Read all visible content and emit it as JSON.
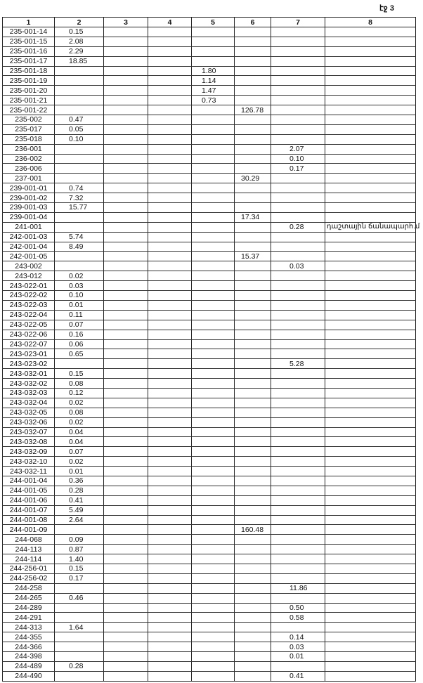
{
  "page_label": "էջ 3",
  "columns": [
    "1",
    "2",
    "3",
    "4",
    "5",
    "6",
    "7",
    "8"
  ],
  "rows": [
    [
      "235-001-14",
      "0.15",
      "",
      "",
      "",
      "",
      "",
      ""
    ],
    [
      "235-001-15",
      "2.08",
      "",
      "",
      "",
      "",
      "",
      ""
    ],
    [
      "235-001-16",
      "2.29",
      "",
      "",
      "",
      "",
      "",
      ""
    ],
    [
      "235-001-17",
      "18.85",
      "",
      "",
      "",
      "",
      "",
      ""
    ],
    [
      "235-001-18",
      "",
      "",
      "",
      "1.80",
      "",
      "",
      ""
    ],
    [
      "235-001-19",
      "",
      "",
      "",
      "1.14",
      "",
      "",
      ""
    ],
    [
      "235-001-20",
      "",
      "",
      "",
      "1.47",
      "",
      "",
      ""
    ],
    [
      "235-001-21",
      "",
      "",
      "",
      "0.73",
      "",
      "",
      ""
    ],
    [
      "235-001-22",
      "",
      "",
      "",
      "",
      "126.78",
      "",
      ""
    ],
    [
      "235-002",
      "0.47",
      "",
      "",
      "",
      "",
      "",
      ""
    ],
    [
      "235-017",
      "0.05",
      "",
      "",
      "",
      "",
      "",
      ""
    ],
    [
      "235-018",
      "0.10",
      "",
      "",
      "",
      "",
      "",
      ""
    ],
    [
      "236-001",
      "",
      "",
      "",
      "",
      "",
      "2.07",
      ""
    ],
    [
      "236-002",
      "",
      "",
      "",
      "",
      "",
      "0.10",
      ""
    ],
    [
      "236-006",
      "",
      "",
      "",
      "",
      "",
      "0.17",
      ""
    ],
    [
      "237-001",
      "",
      "",
      "",
      "",
      "30.29",
      "",
      ""
    ],
    [
      "239-001-01",
      "0.74",
      "",
      "",
      "",
      "",
      "",
      ""
    ],
    [
      "239-001-02",
      "7.32",
      "",
      "",
      "",
      "",
      "",
      ""
    ],
    [
      "239-001-03",
      "15.77",
      "",
      "",
      "",
      "",
      "",
      ""
    ],
    [
      "239-001-04",
      "",
      "",
      "",
      "",
      "17.34",
      "",
      ""
    ],
    [
      "241-001",
      "",
      "",
      "",
      "",
      "",
      "0.28",
      "դաշտային ճանապարհ.մ"
    ],
    [
      "242-001-03",
      "5.74",
      "",
      "",
      "",
      "",
      "",
      ""
    ],
    [
      "242-001-04",
      "8.49",
      "",
      "",
      "",
      "",
      "",
      ""
    ],
    [
      "242-001-05",
      "",
      "",
      "",
      "",
      "15.37",
      "",
      ""
    ],
    [
      "243-002",
      "",
      "",
      "",
      "",
      "",
      "0.03",
      ""
    ],
    [
      "243-012",
      "0.02",
      "",
      "",
      "",
      "",
      "",
      ""
    ],
    [
      "243-022-01",
      "0.03",
      "",
      "",
      "",
      "",
      "",
      ""
    ],
    [
      "243-022-02",
      "0.10",
      "",
      "",
      "",
      "",
      "",
      ""
    ],
    [
      "243-022-03",
      "0.01",
      "",
      "",
      "",
      "",
      "",
      ""
    ],
    [
      "243-022-04",
      "0.11",
      "",
      "",
      "",
      "",
      "",
      ""
    ],
    [
      "243-022-05",
      "0.07",
      "",
      "",
      "",
      "",
      "",
      ""
    ],
    [
      "243-022-06",
      "0.16",
      "",
      "",
      "",
      "",
      "",
      ""
    ],
    [
      "243-022-07",
      "0.06",
      "",
      "",
      "",
      "",
      "",
      ""
    ],
    [
      "243-023-01",
      "0.65",
      "",
      "",
      "",
      "",
      "",
      ""
    ],
    [
      "243-023-02",
      "",
      "",
      "",
      "",
      "",
      "5.28",
      ""
    ],
    [
      "243-032-01",
      "0.15",
      "",
      "",
      "",
      "",
      "",
      ""
    ],
    [
      "243-032-02",
      "0.08",
      "",
      "",
      "",
      "",
      "",
      ""
    ],
    [
      "243-032-03",
      "0.12",
      "",
      "",
      "",
      "",
      "",
      ""
    ],
    [
      "243-032-04",
      "0.02",
      "",
      "",
      "",
      "",
      "",
      ""
    ],
    [
      "243-032-05",
      "0.08",
      "",
      "",
      "",
      "",
      "",
      ""
    ],
    [
      "243-032-06",
      "0.02",
      "",
      "",
      "",
      "",
      "",
      ""
    ],
    [
      "243-032-07",
      "0.04",
      "",
      "",
      "",
      "",
      "",
      ""
    ],
    [
      "243-032-08",
      "0.04",
      "",
      "",
      "",
      "",
      "",
      ""
    ],
    [
      "243-032-09",
      "0.07",
      "",
      "",
      "",
      "",
      "",
      ""
    ],
    [
      "243-032-10",
      "0.02",
      "",
      "",
      "",
      "",
      "",
      ""
    ],
    [
      "243-032-11",
      "0.01",
      "",
      "",
      "",
      "",
      "",
      ""
    ],
    [
      "244-001-04",
      "0.36",
      "",
      "",
      "",
      "",
      "",
      ""
    ],
    [
      "244-001-05",
      "0.28",
      "",
      "",
      "",
      "",
      "",
      ""
    ],
    [
      "244-001-06",
      "0.41",
      "",
      "",
      "",
      "",
      "",
      ""
    ],
    [
      "244-001-07",
      "5.49",
      "",
      "",
      "",
      "",
      "",
      ""
    ],
    [
      "244-001-08",
      "2.64",
      "",
      "",
      "",
      "",
      "",
      ""
    ],
    [
      "244-001-09",
      "",
      "",
      "",
      "",
      "160.48",
      "",
      ""
    ],
    [
      "244-068",
      "0.09",
      "",
      "",
      "",
      "",
      "",
      ""
    ],
    [
      "244-113",
      "0.87",
      "",
      "",
      "",
      "",
      "",
      ""
    ],
    [
      "244-114",
      "1.40",
      "",
      "",
      "",
      "",
      "",
      ""
    ],
    [
      "244-256-01",
      "0.15",
      "",
      "",
      "",
      "",
      "",
      ""
    ],
    [
      "244-256-02",
      "0.17",
      "",
      "",
      "",
      "",
      "",
      ""
    ],
    [
      "244-258",
      "",
      "",
      "",
      "",
      "",
      "11.86",
      ""
    ],
    [
      "244-265",
      "0.46",
      "",
      "",
      "",
      "",
      "",
      ""
    ],
    [
      "244-289",
      "",
      "",
      "",
      "",
      "",
      "0.50",
      ""
    ],
    [
      "244-291",
      "",
      "",
      "",
      "",
      "",
      "0.58",
      ""
    ],
    [
      "244-313",
      "1.64",
      "",
      "",
      "",
      "",
      "",
      ""
    ],
    [
      "244-355",
      "",
      "",
      "",
      "",
      "",
      "0.14",
      ""
    ],
    [
      "244-366",
      "",
      "",
      "",
      "",
      "",
      "0.03",
      ""
    ],
    [
      "244-398",
      "",
      "",
      "",
      "",
      "",
      "0.01",
      ""
    ],
    [
      "244-489",
      "0.28",
      "",
      "",
      "",
      "",
      "",
      ""
    ],
    [
      "244-490",
      "",
      "",
      "",
      "",
      "",
      "0.41",
      ""
    ]
  ]
}
